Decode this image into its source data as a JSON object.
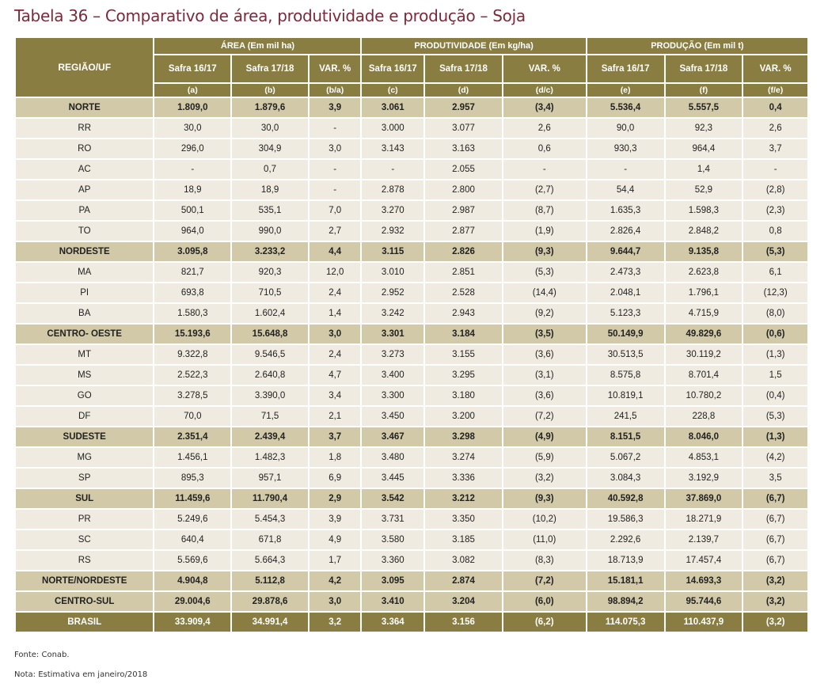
{
  "title": "Tabela 36 – Comparativo de área, produtividade e produção – Soja",
  "header": {
    "region_label": "REGIÃO/UF",
    "groups": [
      "ÁREA (Em mil ha)",
      "PRODUTIVIDADE (Em kg/ha)",
      "PRODUÇÃO (Em mil t)"
    ],
    "subcols": [
      "Safra 16/17",
      "Safra 17/18",
      "VAR. %",
      "Safra 16/17",
      "Safra 17/18",
      "VAR. %",
      "Safra 16/17",
      "Safra 17/18",
      "VAR. %"
    ],
    "letters": [
      "(a)",
      "(b)",
      "(b/a)",
      "(c)",
      "(d)",
      "(d/c)",
      "(e)",
      "(f)",
      "(f/e)"
    ]
  },
  "rows": [
    {
      "type": "region",
      "cells": [
        "NORTE",
        "1.809,0",
        "1.879,6",
        "3,9",
        "3.061",
        "2.957",
        "(3,4)",
        "5.536,4",
        "5.557,5",
        "0,4"
      ]
    },
    {
      "type": "state",
      "cells": [
        "RR",
        "30,0",
        "30,0",
        "-",
        "3.000",
        "3.077",
        "2,6",
        "90,0",
        "92,3",
        "2,6"
      ]
    },
    {
      "type": "state",
      "cells": [
        "RO",
        "296,0",
        "304,9",
        "3,0",
        "3.143",
        "3.163",
        "0,6",
        "930,3",
        "964,4",
        "3,7"
      ]
    },
    {
      "type": "state",
      "cells": [
        "AC",
        "-",
        "0,7",
        "-",
        "-",
        "2.055",
        "-",
        "-",
        "1,4",
        "-"
      ]
    },
    {
      "type": "state",
      "cells": [
        "AP",
        "18,9",
        "18,9",
        "-",
        "2.878",
        "2.800",
        "(2,7)",
        "54,4",
        "52,9",
        "(2,8)"
      ]
    },
    {
      "type": "state",
      "cells": [
        "PA",
        "500,1",
        "535,1",
        "7,0",
        "3.270",
        "2.987",
        "(8,7)",
        "1.635,3",
        "1.598,3",
        "(2,3)"
      ]
    },
    {
      "type": "state",
      "cells": [
        "TO",
        "964,0",
        "990,0",
        "2,7",
        "2.932",
        "2.877",
        "(1,9)",
        "2.826,4",
        "2.848,2",
        "0,8"
      ]
    },
    {
      "type": "region",
      "cells": [
        "NORDESTE",
        "3.095,8",
        "3.233,2",
        "4,4",
        "3.115",
        "2.826",
        "(9,3)",
        "9.644,7",
        "9.135,8",
        "(5,3)"
      ]
    },
    {
      "type": "state",
      "cells": [
        "MA",
        "821,7",
        "920,3",
        "12,0",
        "3.010",
        "2.851",
        "(5,3)",
        "2.473,3",
        "2.623,8",
        "6,1"
      ]
    },
    {
      "type": "state",
      "cells": [
        "PI",
        "693,8",
        "710,5",
        "2,4",
        "2.952",
        "2.528",
        "(14,4)",
        "2.048,1",
        "1.796,1",
        "(12,3)"
      ]
    },
    {
      "type": "state",
      "cells": [
        "BA",
        "1.580,3",
        "1.602,4",
        "1,4",
        "3.242",
        "2.943",
        "(9,2)",
        "5.123,3",
        "4.715,9",
        "(8,0)"
      ]
    },
    {
      "type": "region",
      "cells": [
        "CENTRO- OESTE",
        "15.193,6",
        "15.648,8",
        "3,0",
        "3.301",
        "3.184",
        "(3,5)",
        "50.149,9",
        "49.829,6",
        "(0,6)"
      ]
    },
    {
      "type": "state",
      "cells": [
        "MT",
        "9.322,8",
        "9.546,5",
        "2,4",
        "3.273",
        "3.155",
        "(3,6)",
        "30.513,5",
        "30.119,2",
        "(1,3)"
      ]
    },
    {
      "type": "state",
      "cells": [
        "MS",
        "2.522,3",
        "2.640,8",
        "4,7",
        "3.400",
        "3.295",
        "(3,1)",
        "8.575,8",
        "8.701,4",
        "1,5"
      ]
    },
    {
      "type": "state",
      "cells": [
        "GO",
        "3.278,5",
        "3.390,0",
        "3,4",
        "3.300",
        "3.180",
        "(3,6)",
        "10.819,1",
        "10.780,2",
        "(0,4)"
      ]
    },
    {
      "type": "state",
      "cells": [
        "DF",
        "70,0",
        "71,5",
        "2,1",
        "3.450",
        "3.200",
        "(7,2)",
        "241,5",
        "228,8",
        "(5,3)"
      ]
    },
    {
      "type": "region",
      "cells": [
        "SUDESTE",
        "2.351,4",
        "2.439,4",
        "3,7",
        "3.467",
        "3.298",
        "(4,9)",
        "8.151,5",
        "8.046,0",
        "(1,3)"
      ]
    },
    {
      "type": "state",
      "cells": [
        "MG",
        "1.456,1",
        "1.482,3",
        "1,8",
        "3.480",
        "3.274",
        "(5,9)",
        "5.067,2",
        "4.853,1",
        "(4,2)"
      ]
    },
    {
      "type": "state",
      "cells": [
        "SP",
        "895,3",
        "957,1",
        "6,9",
        "3.445",
        "3.336",
        "(3,2)",
        "3.084,3",
        "3.192,9",
        "3,5"
      ]
    },
    {
      "type": "region",
      "cells": [
        "SUL",
        "11.459,6",
        "11.790,4",
        "2,9",
        "3.542",
        "3.212",
        "(9,3)",
        "40.592,8",
        "37.869,0",
        "(6,7)"
      ]
    },
    {
      "type": "state",
      "cells": [
        "PR",
        "5.249,6",
        "5.454,3",
        "3,9",
        "3.731",
        "3.350",
        "(10,2)",
        "19.586,3",
        "18.271,9",
        "(6,7)"
      ]
    },
    {
      "type": "state",
      "cells": [
        "SC",
        "640,4",
        "671,8",
        "4,9",
        "3.580",
        "3.185",
        "(11,0)",
        "2.292,6",
        "2.139,7",
        "(6,7)"
      ]
    },
    {
      "type": "state",
      "cells": [
        "RS",
        "5.569,6",
        "5.664,3",
        "1,7",
        "3.360",
        "3.082",
        "(8,3)",
        "18.713,9",
        "17.457,4",
        "(6,7)"
      ]
    },
    {
      "type": "region",
      "cells": [
        "NORTE/NORDESTE",
        "4.904,8",
        "5.112,8",
        "4,2",
        "3.095",
        "2.874",
        "(7,2)",
        "15.181,1",
        "14.693,3",
        "(3,2)"
      ]
    },
    {
      "type": "region",
      "cells": [
        "CENTRO-SUL",
        "29.004,6",
        "29.878,6",
        "3,0",
        "3.410",
        "3.204",
        "(6,0)",
        "98.894,2",
        "95.744,6",
        "(3,2)"
      ]
    },
    {
      "type": "total",
      "cells": [
        "BRASIL",
        "33.909,4",
        "34.991,4",
        "3,2",
        "3.364",
        "3.156",
        "(6,2)",
        "114.075,3",
        "110.437,9",
        "(3,2)"
      ]
    }
  ],
  "footer": {
    "fonte": "Fonte: Conab.",
    "nota": "Nota: Estimativa em janeiro/2018"
  },
  "colors": {
    "title": "#7a2a3b",
    "header_bg": "#8a7d42",
    "region_bg": "#d2c9a8",
    "state_bg": "#efebe0"
  }
}
